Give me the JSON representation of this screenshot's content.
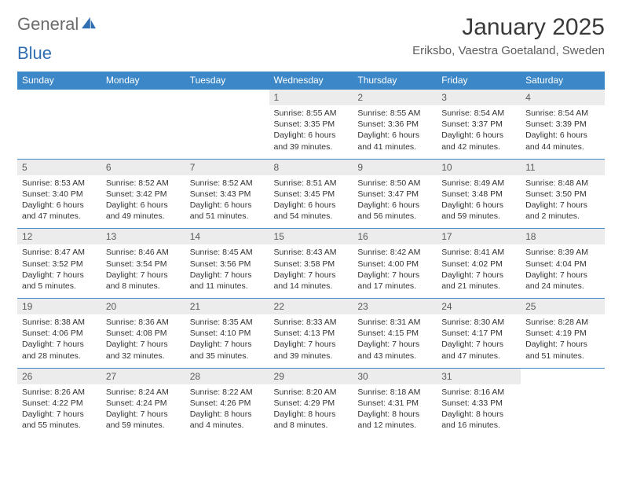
{
  "logo": {
    "text1": "General",
    "text2": "Blue"
  },
  "title": "January 2025",
  "location": "Eriksbo, Vaestra Goetaland, Sweden",
  "colors": {
    "header_bg": "#3b87c8",
    "header_text": "#ffffff",
    "daynum_bg": "#ececec",
    "border": "#3b87c8",
    "logo_gray": "#6b6b6b",
    "logo_blue": "#2f6fb2"
  },
  "day_headers": [
    "Sunday",
    "Monday",
    "Tuesday",
    "Wednesday",
    "Thursday",
    "Friday",
    "Saturday"
  ],
  "weeks": [
    [
      {
        "empty": true
      },
      {
        "empty": true
      },
      {
        "empty": true
      },
      {
        "n": "1",
        "sunrise": "8:55 AM",
        "sunset": "3:35 PM",
        "daylight": "6 hours and 39 minutes."
      },
      {
        "n": "2",
        "sunrise": "8:55 AM",
        "sunset": "3:36 PM",
        "daylight": "6 hours and 41 minutes."
      },
      {
        "n": "3",
        "sunrise": "8:54 AM",
        "sunset": "3:37 PM",
        "daylight": "6 hours and 42 minutes."
      },
      {
        "n": "4",
        "sunrise": "8:54 AM",
        "sunset": "3:39 PM",
        "daylight": "6 hours and 44 minutes."
      }
    ],
    [
      {
        "n": "5",
        "sunrise": "8:53 AM",
        "sunset": "3:40 PM",
        "daylight": "6 hours and 47 minutes."
      },
      {
        "n": "6",
        "sunrise": "8:52 AM",
        "sunset": "3:42 PM",
        "daylight": "6 hours and 49 minutes."
      },
      {
        "n": "7",
        "sunrise": "8:52 AM",
        "sunset": "3:43 PM",
        "daylight": "6 hours and 51 minutes."
      },
      {
        "n": "8",
        "sunrise": "8:51 AM",
        "sunset": "3:45 PM",
        "daylight": "6 hours and 54 minutes."
      },
      {
        "n": "9",
        "sunrise": "8:50 AM",
        "sunset": "3:47 PM",
        "daylight": "6 hours and 56 minutes."
      },
      {
        "n": "10",
        "sunrise": "8:49 AM",
        "sunset": "3:48 PM",
        "daylight": "6 hours and 59 minutes."
      },
      {
        "n": "11",
        "sunrise": "8:48 AM",
        "sunset": "3:50 PM",
        "daylight": "7 hours and 2 minutes."
      }
    ],
    [
      {
        "n": "12",
        "sunrise": "8:47 AM",
        "sunset": "3:52 PM",
        "daylight": "7 hours and 5 minutes."
      },
      {
        "n": "13",
        "sunrise": "8:46 AM",
        "sunset": "3:54 PM",
        "daylight": "7 hours and 8 minutes."
      },
      {
        "n": "14",
        "sunrise": "8:45 AM",
        "sunset": "3:56 PM",
        "daylight": "7 hours and 11 minutes."
      },
      {
        "n": "15",
        "sunrise": "8:43 AM",
        "sunset": "3:58 PM",
        "daylight": "7 hours and 14 minutes."
      },
      {
        "n": "16",
        "sunrise": "8:42 AM",
        "sunset": "4:00 PM",
        "daylight": "7 hours and 17 minutes."
      },
      {
        "n": "17",
        "sunrise": "8:41 AM",
        "sunset": "4:02 PM",
        "daylight": "7 hours and 21 minutes."
      },
      {
        "n": "18",
        "sunrise": "8:39 AM",
        "sunset": "4:04 PM",
        "daylight": "7 hours and 24 minutes."
      }
    ],
    [
      {
        "n": "19",
        "sunrise": "8:38 AM",
        "sunset": "4:06 PM",
        "daylight": "7 hours and 28 minutes."
      },
      {
        "n": "20",
        "sunrise": "8:36 AM",
        "sunset": "4:08 PM",
        "daylight": "7 hours and 32 minutes."
      },
      {
        "n": "21",
        "sunrise": "8:35 AM",
        "sunset": "4:10 PM",
        "daylight": "7 hours and 35 minutes."
      },
      {
        "n": "22",
        "sunrise": "8:33 AM",
        "sunset": "4:13 PM",
        "daylight": "7 hours and 39 minutes."
      },
      {
        "n": "23",
        "sunrise": "8:31 AM",
        "sunset": "4:15 PM",
        "daylight": "7 hours and 43 minutes."
      },
      {
        "n": "24",
        "sunrise": "8:30 AM",
        "sunset": "4:17 PM",
        "daylight": "7 hours and 47 minutes."
      },
      {
        "n": "25",
        "sunrise": "8:28 AM",
        "sunset": "4:19 PM",
        "daylight": "7 hours and 51 minutes."
      }
    ],
    [
      {
        "n": "26",
        "sunrise": "8:26 AM",
        "sunset": "4:22 PM",
        "daylight": "7 hours and 55 minutes."
      },
      {
        "n": "27",
        "sunrise": "8:24 AM",
        "sunset": "4:24 PM",
        "daylight": "7 hours and 59 minutes."
      },
      {
        "n": "28",
        "sunrise": "8:22 AM",
        "sunset": "4:26 PM",
        "daylight": "8 hours and 4 minutes."
      },
      {
        "n": "29",
        "sunrise": "8:20 AM",
        "sunset": "4:29 PM",
        "daylight": "8 hours and 8 minutes."
      },
      {
        "n": "30",
        "sunrise": "8:18 AM",
        "sunset": "4:31 PM",
        "daylight": "8 hours and 12 minutes."
      },
      {
        "n": "31",
        "sunrise": "8:16 AM",
        "sunset": "4:33 PM",
        "daylight": "8 hours and 16 minutes."
      },
      {
        "empty": true
      }
    ]
  ],
  "labels": {
    "sunrise": "Sunrise: ",
    "sunset": "Sunset: ",
    "daylight": "Daylight: "
  }
}
